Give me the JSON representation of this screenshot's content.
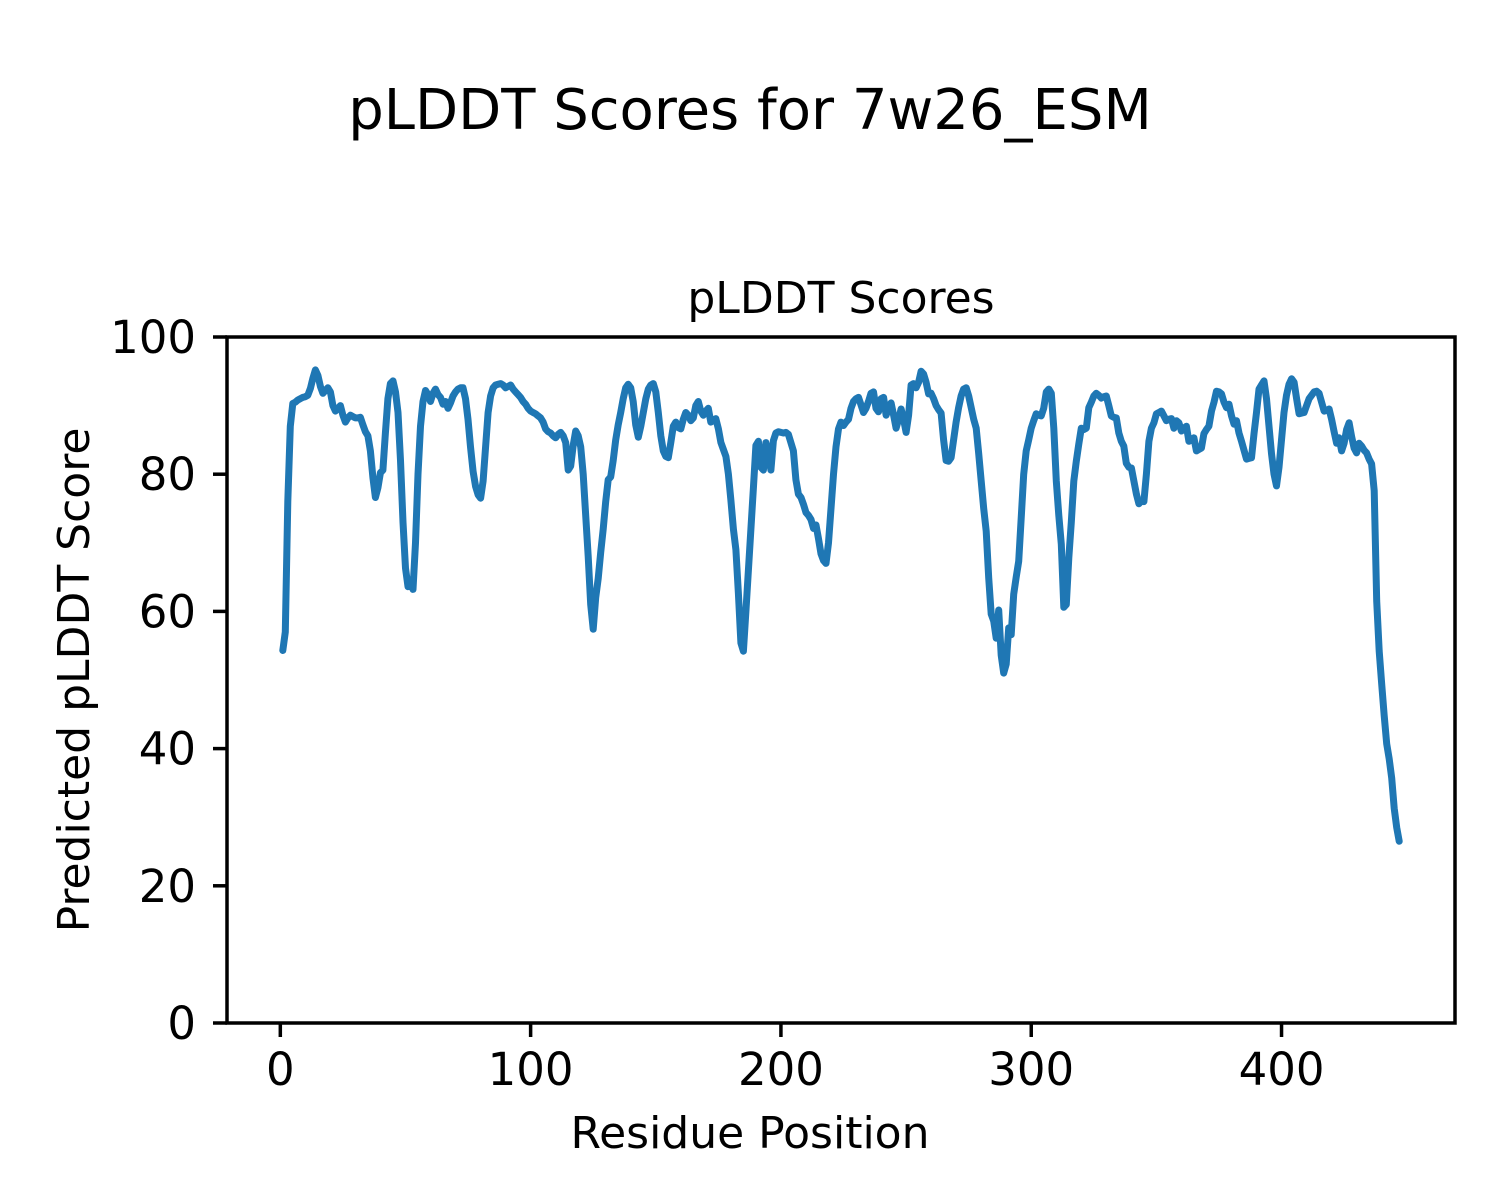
{
  "chart_data": {
    "type": "line",
    "suptitle": "pLDDT Scores for 7w26_ESM",
    "axes_title": "pLDDT Scores",
    "xlabel": "Residue Position",
    "ylabel": "Predicted pLDDT Score",
    "xlim": [
      -21.3,
      469.3
    ],
    "ylim": [
      0,
      100
    ],
    "xticks": [
      0,
      100,
      200,
      300,
      400
    ],
    "yticks": [
      0,
      20,
      40,
      60,
      80,
      100
    ],
    "grid": false,
    "legend": null,
    "line_color": "#1f77b4",
    "spine_color": "#000000",
    "background_color": "#ffffff",
    "series": [
      {
        "name": "pLDDT",
        "x_start": 1,
        "x_step": 1,
        "y": [
          54.3,
          57,
          76,
          87,
          90.3,
          90.5,
          90.8,
          91,
          91.2,
          91.3,
          91.5,
          92.5,
          94,
          95.2,
          94.4,
          92.8,
          91.8,
          92.2,
          92.6,
          92,
          90,
          89.2,
          89.6,
          90,
          88.6,
          87.6,
          88.2,
          88.6,
          88.4,
          88.2,
          88.2,
          88.3,
          87.2,
          86.2,
          85.6,
          83.4,
          79.5,
          76.6,
          78,
          80.2,
          80.6,
          86,
          91,
          93.2,
          93.6,
          92,
          89,
          82,
          73,
          66.3,
          63.6,
          64.2,
          63.2,
          70,
          80,
          87,
          90.6,
          92.2,
          91.6,
          90.6,
          91.8,
          92.4,
          91.6,
          91.2,
          90.2,
          90.6,
          89.6,
          90.4,
          91.4,
          92,
          92.4,
          92.6,
          92.6,
          91,
          88,
          84,
          80.4,
          78.2,
          77,
          76.5,
          79,
          84,
          89,
          91.4,
          92.6,
          93,
          93.1,
          93.2,
          93,
          92.6,
          92.8,
          93,
          92.4,
          92,
          91.6,
          91.2,
          90.6,
          90.2,
          89.6,
          89.2,
          89,
          88.8,
          88.5,
          88.2,
          87.6,
          86.6,
          86.2,
          86,
          85.6,
          85.3,
          85.8,
          86.1,
          85.6,
          84.6,
          80.6,
          81.2,
          84.2,
          86.3,
          85.6,
          84,
          80,
          74,
          68,
          61,
          57.4,
          62,
          64.8,
          68.6,
          72,
          76,
          79.2,
          79.6,
          82,
          85,
          87.2,
          89,
          91,
          92.6,
          93.1,
          92.6,
          90.6,
          87.2,
          85.4,
          87,
          89,
          91,
          92.4,
          93,
          93.2,
          92,
          89,
          85.6,
          83.4,
          82.6,
          82.4,
          84.6,
          87,
          87.6,
          86.8,
          86.6,
          88,
          89,
          88.6,
          87.8,
          88.2,
          90,
          90.6,
          89.2,
          88.6,
          89.2,
          89.6,
          87.6,
          87.8,
          88.1,
          86.6,
          84.6,
          83.6,
          82.6,
          80,
          76.2,
          72,
          69,
          62.6,
          55.4,
          54.2,
          60,
          66,
          72,
          78,
          84.2,
          84.8,
          81,
          80.6,
          84.6,
          83,
          80.6,
          84.9,
          86,
          86.2,
          86.1,
          86,
          86.1,
          85.8,
          84.6,
          83.4,
          79.2,
          77.1,
          76.6,
          75.6,
          74.4,
          74,
          73.4,
          72.1,
          72.6,
          70.6,
          68.4,
          67.4,
          67,
          70,
          75,
          80,
          84,
          86.6,
          87.6,
          87.1,
          87.6,
          88,
          89.6,
          90.6,
          91,
          91.2,
          90.1,
          89,
          89.6,
          90.6,
          91.8,
          92,
          89.6,
          89.1,
          91,
          91.2,
          88.6,
          89.6,
          90.4,
          88.6,
          86.7,
          88,
          89.5,
          88,
          86.1,
          88.6,
          93,
          93.2,
          92.6,
          93.4,
          95,
          94.6,
          93.4,
          91.7,
          91.8,
          91,
          90,
          89.4,
          88.9,
          85,
          82,
          81.9,
          82.4,
          85,
          87.6,
          89.7,
          91.4,
          92.4,
          92.6,
          91.4,
          89.7,
          88,
          86.7,
          83,
          79,
          75,
          71.7,
          64.9,
          59.6,
          58.6,
          56.1,
          60.2,
          53.6,
          51,
          52.3,
          57.6,
          56.6,
          62.5,
          65,
          67.3,
          73.6,
          80,
          83.4,
          85,
          86.7,
          87.8,
          88.8,
          88.6,
          88.5,
          89.6,
          92,
          92.4,
          91.8,
          86.7,
          79,
          74,
          69.8,
          60.6,
          61,
          67.8,
          73,
          79,
          81.9,
          84.4,
          86.7,
          86.5,
          86.7,
          89.7,
          90.5,
          91.4,
          91.8,
          91.5,
          91.1,
          91.3,
          91.4,
          90,
          88.5,
          88.3,
          88.2,
          86,
          84.8,
          84.1,
          81.6,
          81,
          80.9,
          79,
          77.1,
          75.7,
          76.1,
          76,
          80,
          84.8,
          86.7,
          87.5,
          88.8,
          89,
          89.2,
          88.5,
          87.8,
          88,
          88.1,
          86.7,
          87.8,
          87.5,
          86.3,
          86.7,
          87,
          84.8,
          85,
          85.3,
          83.4,
          83.6,
          83.8,
          85.9,
          86.5,
          87,
          89.2,
          90.5,
          92.1,
          92,
          91.7,
          90.5,
          89.7,
          90.2,
          88.5,
          87.3,
          87.8,
          86,
          84.8,
          83.5,
          82.2,
          82.3,
          82.4,
          85.9,
          89,
          92.4,
          93,
          93.6,
          91,
          87,
          83,
          80,
          78.3,
          81,
          85,
          89,
          91.5,
          93.1,
          93.9,
          93.4,
          91,
          88.8,
          88.9,
          89,
          90,
          91,
          91.5,
          92,
          92.1,
          91.8,
          90.5,
          89.2,
          89.3,
          89.5,
          88,
          86.2,
          84.5,
          85.3,
          83.4,
          84.5,
          86.5,
          87.5,
          85.5,
          83.8,
          83.1,
          84.5,
          84.1,
          83.5,
          83.1,
          82.2,
          81.5,
          77.6,
          61.5,
          54.2,
          49.4,
          44.8,
          40.7,
          38.5,
          35.7,
          31.3,
          28.5,
          26.5
        ]
      }
    ]
  }
}
